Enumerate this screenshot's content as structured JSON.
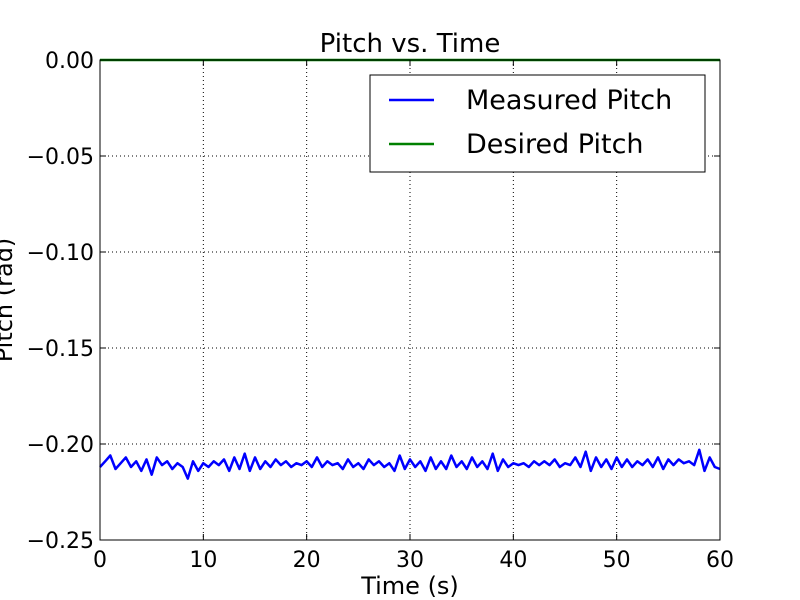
{
  "chart_data": {
    "type": "line",
    "title": "Pitch vs. Time",
    "xlabel": "Time (s)",
    "ylabel": "Pitch (rad)",
    "xlim": [
      0,
      60
    ],
    "ylim": [
      -0.25,
      0.0
    ],
    "xticks": [
      0,
      10,
      20,
      30,
      40,
      50,
      60
    ],
    "xtick_labels": [
      "0",
      "10",
      "20",
      "30",
      "40",
      "50",
      "60"
    ],
    "yticks": [
      0.0,
      -0.05,
      -0.1,
      -0.15,
      -0.2,
      -0.25
    ],
    "ytick_labels": [
      "0.00",
      "−0.05",
      "−0.10",
      "−0.15",
      "−0.20",
      "−0.25"
    ],
    "grid": true,
    "legend_position": "top-right",
    "series": [
      {
        "name": "Measured Pitch",
        "color": "#0000ff",
        "x": [
          0,
          0.5,
          1,
          1.5,
          2,
          2.5,
          3,
          3.5,
          4,
          4.5,
          5,
          5.5,
          6,
          6.5,
          7,
          7.5,
          8,
          8.5,
          9,
          9.5,
          10,
          10.5,
          11,
          11.5,
          12,
          12.5,
          13,
          13.5,
          14,
          14.5,
          15,
          15.5,
          16,
          16.5,
          17,
          17.5,
          18,
          18.5,
          19,
          19.5,
          20,
          20.5,
          21,
          21.5,
          22,
          22.5,
          23,
          23.5,
          24,
          24.5,
          25,
          25.5,
          26,
          26.5,
          27,
          27.5,
          28,
          28.5,
          29,
          29.5,
          30,
          30.5,
          31,
          31.5,
          32,
          32.5,
          33,
          33.5,
          34,
          34.5,
          35,
          35.5,
          36,
          36.5,
          37,
          37.5,
          38,
          38.5,
          39,
          39.5,
          40,
          40.5,
          41,
          41.5,
          42,
          42.5,
          43,
          43.5,
          44,
          44.5,
          45,
          45.5,
          46,
          46.5,
          47,
          47.5,
          48,
          48.5,
          49,
          49.5,
          50,
          50.5,
          51,
          51.5,
          52,
          52.5,
          53,
          53.5,
          54,
          54.5,
          55,
          55.5,
          56,
          56.5,
          57,
          57.5,
          58,
          58.5,
          59,
          59.5,
          60
        ],
        "y": [
          -0.212,
          -0.209,
          -0.206,
          -0.213,
          -0.21,
          -0.207,
          -0.212,
          -0.209,
          -0.214,
          -0.208,
          -0.216,
          -0.207,
          -0.211,
          -0.209,
          -0.213,
          -0.21,
          -0.212,
          -0.218,
          -0.209,
          -0.214,
          -0.21,
          -0.212,
          -0.209,
          -0.211,
          -0.208,
          -0.214,
          -0.207,
          -0.213,
          -0.205,
          -0.214,
          -0.207,
          -0.213,
          -0.209,
          -0.212,
          -0.208,
          -0.211,
          -0.209,
          -0.212,
          -0.21,
          -0.211,
          -0.209,
          -0.212,
          -0.207,
          -0.212,
          -0.209,
          -0.211,
          -0.21,
          -0.213,
          -0.208,
          -0.212,
          -0.21,
          -0.213,
          -0.208,
          -0.211,
          -0.209,
          -0.212,
          -0.21,
          -0.214,
          -0.206,
          -0.213,
          -0.208,
          -0.212,
          -0.209,
          -0.214,
          -0.207,
          -0.213,
          -0.209,
          -0.213,
          -0.206,
          -0.212,
          -0.209,
          -0.213,
          -0.207,
          -0.212,
          -0.209,
          -0.213,
          -0.205,
          -0.214,
          -0.208,
          -0.212,
          -0.21,
          -0.211,
          -0.21,
          -0.212,
          -0.209,
          -0.211,
          -0.209,
          -0.211,
          -0.208,
          -0.212,
          -0.21,
          -0.211,
          -0.207,
          -0.212,
          -0.204,
          -0.214,
          -0.207,
          -0.212,
          -0.208,
          -0.213,
          -0.207,
          -0.212,
          -0.208,
          -0.212,
          -0.209,
          -0.211,
          -0.208,
          -0.212,
          -0.207,
          -0.213,
          -0.208,
          -0.211,
          -0.208,
          -0.21,
          -0.209,
          -0.211,
          -0.203,
          -0.214,
          -0.207,
          -0.212,
          -0.213
        ]
      },
      {
        "name": "Desired Pitch",
        "color": "#008000",
        "x": [
          0,
          60
        ],
        "y": [
          0.0,
          0.0
        ]
      }
    ]
  }
}
